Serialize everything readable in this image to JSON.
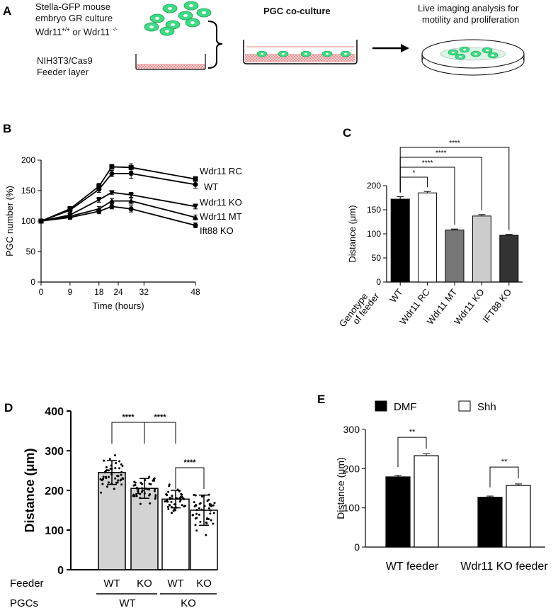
{
  "panels": {
    "A": "A",
    "B": "B",
    "C": "C",
    "D": "D",
    "E": "E"
  },
  "panel_a": {
    "culture_label_line1": "Stella-GFP mouse",
    "culture_label_line2": "embryo GR culture",
    "culture_label_line3_prefix": "Wdr11",
    "culture_label_line3_sup1": "+/+",
    "culture_label_line3_mid": " or Wdr11 ",
    "culture_label_line3_sup2": "-/-",
    "feeder_label_line1": "NIH3T3/Cas9",
    "feeder_label_line2": "Feeder layer",
    "coculture_title": "PGC co-culture",
    "imaging_line1": "Live imaging analysis for",
    "imaging_line2": "motility and proliferation",
    "colors": {
      "cell_fill": "#2ecc71",
      "feeder_fill": "#f4b6b6",
      "arrow": "#000000"
    }
  },
  "chart_data": [
    {
      "panel": "B",
      "type": "line",
      "title": "",
      "xlabel": "Time (hours)",
      "ylabel": "PGC number (%)",
      "x": [
        0,
        9,
        18,
        22,
        28,
        48
      ],
      "xticks": [
        0,
        9,
        18,
        24,
        32,
        48
      ],
      "yticks": [
        0,
        50,
        100,
        150,
        200
      ],
      "xlim": [
        0,
        48
      ],
      "ylim": [
        0,
        200
      ],
      "series": [
        {
          "name": "Wdr11 RC",
          "marker": "square",
          "values": [
            100,
            120,
            157,
            189,
            188,
            169
          ],
          "errors": [
            3,
            4,
            5,
            4,
            6,
            4
          ]
        },
        {
          "name": "WT",
          "marker": "circle",
          "values": [
            100,
            118,
            152,
            178,
            178,
            160
          ],
          "errors": [
            3,
            4,
            5,
            5,
            8,
            6
          ]
        },
        {
          "name": "Wdr11 KO",
          "marker": "triangle-down",
          "values": [
            100,
            110,
            135,
            147,
            143,
            124
          ],
          "errors": [
            3,
            3,
            4,
            3,
            4,
            4
          ]
        },
        {
          "name": "Wdr11 MT",
          "marker": "triangle-up",
          "values": [
            100,
            108,
            120,
            133,
            133,
            106
          ],
          "errors": [
            3,
            3,
            4,
            4,
            5,
            4
          ]
        },
        {
          "name": "Ift88 KO",
          "marker": "circle",
          "values": [
            100,
            106,
            116,
            124,
            120,
            93
          ],
          "errors": [
            3,
            3,
            4,
            4,
            5,
            4
          ]
        }
      ]
    },
    {
      "panel": "C",
      "type": "bar",
      "title": "",
      "xlabel": "Genotype of feeder",
      "ylabel": "Distance (μm)",
      "categories": [
        "WT",
        "Wdr11 RC",
        "Wdr11 MT",
        "Wdr11 KO",
        "IFT88 KO"
      ],
      "values": [
        172,
        185,
        108,
        137,
        97
      ],
      "errors": [
        5,
        3,
        2,
        3,
        2
      ],
      "colors": [
        "#000000",
        "#ffffff",
        "#777777",
        "#cccccc",
        "#333333"
      ],
      "yticks": [
        0,
        50,
        100,
        150,
        200
      ],
      "ylim": [
        0,
        200
      ],
      "significance": [
        {
          "from": 0,
          "to": 1,
          "label": "*"
        },
        {
          "from": 0,
          "to": 2,
          "label": "****"
        },
        {
          "from": 0,
          "to": 3,
          "label": "****"
        },
        {
          "from": 0,
          "to": 4,
          "label": "****"
        }
      ]
    },
    {
      "panel": "D",
      "type": "bar",
      "title": "",
      "ylabel": "Distance (μm)",
      "categories": [
        "WT",
        "KO",
        "WT",
        "KO"
      ],
      "feeder_row_label": "Feeder",
      "pgc_row_label": "PGCs",
      "pgc_groups": [
        "WT",
        "KO"
      ],
      "values": [
        245,
        205,
        178,
        150
      ],
      "sd": [
        30,
        25,
        22,
        38
      ],
      "colors": [
        "#d3d3d3",
        "#d3d3d3",
        "#ffffff",
        "#ffffff"
      ],
      "yticks": [
        0,
        100,
        200,
        300,
        400
      ],
      "ylim": [
        0,
        400
      ],
      "points_per_group": 45,
      "significance": [
        {
          "from": 0,
          "to": 1,
          "label": "****"
        },
        {
          "from": 1,
          "to": 2,
          "label": "****"
        },
        {
          "from": 2,
          "to": 3,
          "label": "****"
        }
      ]
    },
    {
      "panel": "E",
      "type": "bar",
      "title": "",
      "ylabel": "Distance (μm)",
      "categories": [
        "WT feeder",
        "Wdr11 KO feeder"
      ],
      "series": [
        {
          "name": "DMF",
          "color": "#000000",
          "values": [
            179,
            127
          ],
          "errors": [
            4,
            3
          ]
        },
        {
          "name": "Shh",
          "color": "#ffffff",
          "values": [
            233,
            157
          ],
          "errors": [
            5,
            4
          ]
        }
      ],
      "yticks": [
        0,
        100,
        200,
        300
      ],
      "ylim": [
        0,
        300
      ],
      "significance": [
        {
          "group": 0,
          "label": "**"
        },
        {
          "group": 1,
          "label": "**"
        }
      ]
    }
  ]
}
